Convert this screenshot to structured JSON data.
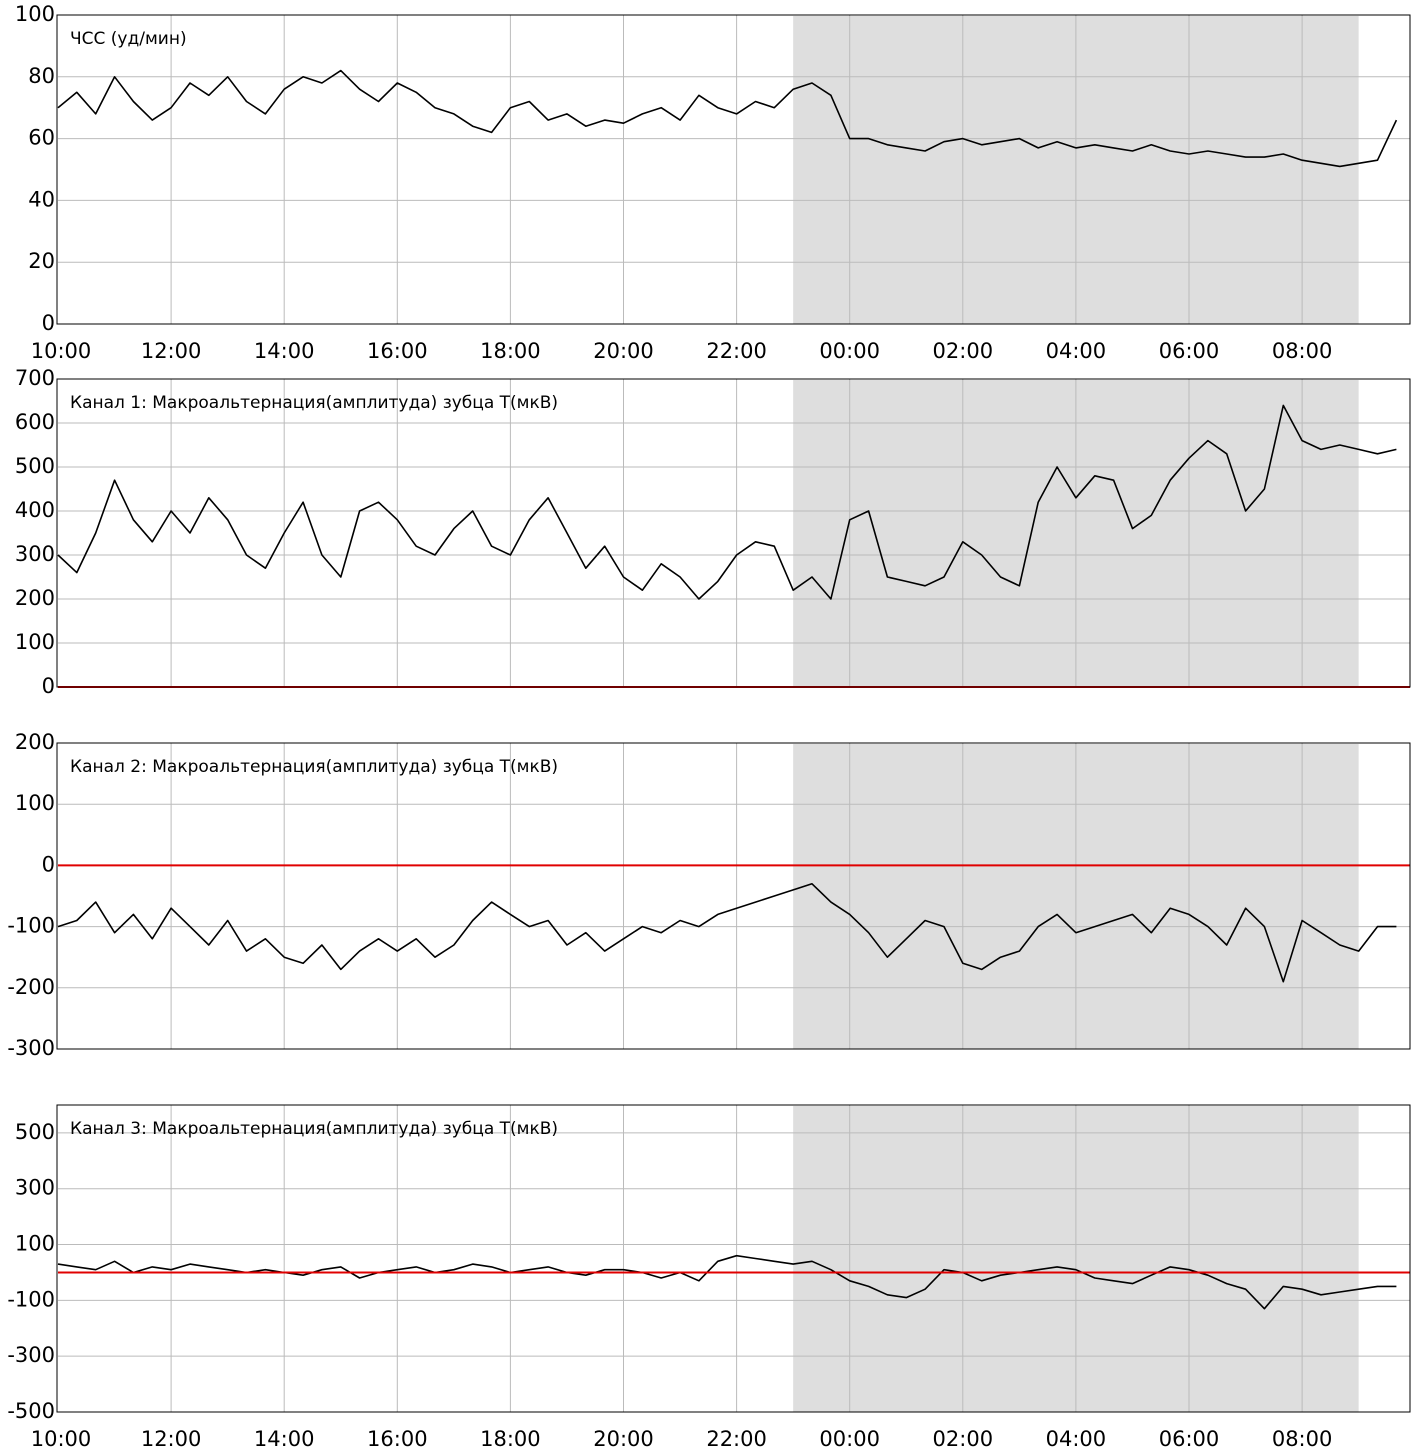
{
  "chart_data": [
    {
      "type": "line",
      "title": "ЧСС (уд/мин)",
      "categories": [
        "10:00",
        null,
        null,
        null,
        null,
        null,
        "12:00",
        null,
        null,
        null,
        null,
        null,
        "14:00",
        null,
        null,
        null,
        null,
        null,
        "16:00",
        null,
        null,
        null,
        null,
        null,
        "18:00",
        null,
        null,
        null,
        null,
        null,
        "20:00",
        null,
        null,
        null,
        null,
        null,
        "22:00",
        null,
        null,
        null,
        null,
        null,
        "00:00",
        null,
        null,
        null,
        null,
        null,
        "02:00",
        null,
        null,
        null,
        null,
        null,
        "04:00",
        null,
        null,
        null,
        null,
        null,
        "06:00",
        null,
        null,
        null,
        null,
        null,
        "08:00",
        null,
        null,
        null,
        null,
        null
      ],
      "series": [
        {
          "color": "#000000",
          "values": [
            70,
            75,
            68,
            80,
            72,
            66,
            70,
            78,
            74,
            80,
            72,
            68,
            76,
            80,
            78,
            82,
            76,
            72,
            78,
            75,
            70,
            68,
            64,
            62,
            70,
            72,
            66,
            68,
            64,
            66,
            65,
            68,
            70,
            66,
            74,
            70,
            68,
            72,
            70,
            76,
            78,
            74,
            60,
            60,
            58,
            57,
            56,
            59,
            60,
            58,
            59,
            60,
            57,
            59,
            57,
            58,
            57,
            56,
            58,
            56,
            55,
            56,
            55,
            54,
            54,
            55,
            53,
            52,
            51,
            52,
            53,
            66
          ]
        }
      ],
      "ylim": [
        0,
        100
      ],
      "yticks": [
        0,
        20,
        40,
        60,
        80,
        100
      ],
      "grid": true
    },
    {
      "type": "line",
      "title": "Канал 1: Макроальтернация(амплитуда) зубца T(мкВ)",
      "categories": [
        "10:00",
        null,
        null,
        null,
        null,
        null,
        "12:00",
        null,
        null,
        null,
        null,
        null,
        "14:00",
        null,
        null,
        null,
        null,
        null,
        "16:00",
        null,
        null,
        null,
        null,
        null,
        "18:00",
        null,
        null,
        null,
        null,
        null,
        "20:00",
        null,
        null,
        null,
        null,
        null,
        "22:00",
        null,
        null,
        null,
        null,
        null,
        "00:00",
        null,
        null,
        null,
        null,
        null,
        "02:00",
        null,
        null,
        null,
        null,
        null,
        "04:00",
        null,
        null,
        null,
        null,
        null,
        "06:00",
        null,
        null,
        null,
        null,
        null,
        "08:00",
        null,
        null,
        null,
        null,
        null
      ],
      "series": [
        {
          "color": "#000000",
          "values": [
            300,
            260,
            350,
            470,
            380,
            330,
            400,
            350,
            430,
            380,
            300,
            270,
            350,
            420,
            300,
            250,
            400,
            420,
            380,
            320,
            300,
            360,
            400,
            320,
            300,
            380,
            430,
            350,
            270,
            320,
            250,
            220,
            280,
            250,
            200,
            240,
            300,
            330,
            320,
            220,
            250,
            200,
            380,
            400,
            250,
            240,
            230,
            250,
            330,
            300,
            250,
            230,
            420,
            500,
            430,
            480,
            470,
            360,
            390,
            470,
            520,
            560,
            530,
            400,
            450,
            640,
            560,
            540,
            550,
            540,
            530,
            540
          ]
        }
      ],
      "ylim": [
        0,
        700
      ],
      "yticks": [
        0,
        100,
        200,
        300,
        400,
        500,
        600,
        700
      ],
      "grid": true,
      "refline": 0,
      "refline_color": "#e00000"
    },
    {
      "type": "line",
      "title": "Канал 2: Макроальтернация(амплитуда) зубца T(мкВ)",
      "categories": [
        "10:00",
        null,
        null,
        null,
        null,
        null,
        "12:00",
        null,
        null,
        null,
        null,
        null,
        "14:00",
        null,
        null,
        null,
        null,
        null,
        "16:00",
        null,
        null,
        null,
        null,
        null,
        "18:00",
        null,
        null,
        null,
        null,
        null,
        "20:00",
        null,
        null,
        null,
        null,
        null,
        "22:00",
        null,
        null,
        null,
        null,
        null,
        "00:00",
        null,
        null,
        null,
        null,
        null,
        "02:00",
        null,
        null,
        null,
        null,
        null,
        "04:00",
        null,
        null,
        null,
        null,
        null,
        "06:00",
        null,
        null,
        null,
        null,
        null,
        "08:00",
        null,
        null,
        null,
        null,
        null
      ],
      "series": [
        {
          "color": "#000000",
          "values": [
            -100,
            -90,
            -60,
            -110,
            -80,
            -120,
            -70,
            -100,
            -130,
            -90,
            -140,
            -120,
            -150,
            -160,
            -130,
            -170,
            -140,
            -120,
            -140,
            -120,
            -150,
            -130,
            -90,
            -60,
            -80,
            -100,
            -90,
            -130,
            -110,
            -140,
            -120,
            -100,
            -110,
            -90,
            -100,
            -80,
            -70,
            -60,
            -50,
            -40,
            -30,
            -60,
            -80,
            -110,
            -150,
            -120,
            -90,
            -100,
            -160,
            -170,
            -150,
            -140,
            -100,
            -80,
            -110,
            -100,
            -90,
            -80,
            -110,
            -70,
            -80,
            -100,
            -130,
            -70,
            -100,
            -190,
            -90,
            -110,
            -130,
            -140,
            -100,
            -100
          ]
        }
      ],
      "ylim": [
        -300,
        200
      ],
      "yticks": [
        -300,
        -200,
        -100,
        0,
        100,
        200
      ],
      "grid": true,
      "refline": 0,
      "refline_color": "#e00000"
    },
    {
      "type": "line",
      "title": "Канал 3: Макроальтернация(амплитуда) зубца T(мкВ)",
      "categories": [
        "10:00",
        null,
        null,
        null,
        null,
        null,
        "12:00",
        null,
        null,
        null,
        null,
        null,
        "14:00",
        null,
        null,
        null,
        null,
        null,
        "16:00",
        null,
        null,
        null,
        null,
        null,
        "18:00",
        null,
        null,
        null,
        null,
        null,
        "20:00",
        null,
        null,
        null,
        null,
        null,
        "22:00",
        null,
        null,
        null,
        null,
        null,
        "00:00",
        null,
        null,
        null,
        null,
        null,
        "02:00",
        null,
        null,
        null,
        null,
        null,
        "04:00",
        null,
        null,
        null,
        null,
        null,
        "06:00",
        null,
        null,
        null,
        null,
        null,
        "08:00",
        null,
        null,
        null,
        null,
        null
      ],
      "series": [
        {
          "color": "#000000",
          "values": [
            30,
            20,
            10,
            40,
            0,
            20,
            10,
            30,
            20,
            10,
            0,
            10,
            0,
            -10,
            10,
            20,
            -20,
            0,
            10,
            20,
            0,
            10,
            30,
            20,
            0,
            10,
            20,
            0,
            -10,
            10,
            10,
            0,
            -20,
            0,
            -30,
            40,
            60,
            50,
            40,
            30,
            40,
            10,
            -30,
            -50,
            -80,
            -90,
            -60,
            10,
            0,
            -30,
            -10,
            0,
            10,
            20,
            10,
            -20,
            -30,
            -40,
            -10,
            20,
            10,
            -10,
            -40,
            -60,
            -130,
            -50,
            -60,
            -80,
            -70,
            -60,
            -50,
            -50
          ]
        }
      ],
      "ylim": [
        -500,
        600
      ],
      "yticks": [
        -500,
        -300,
        -100,
        100,
        300,
        500
      ],
      "grid": true,
      "refline": 0,
      "refline_color": "#e00000"
    }
  ]
}
